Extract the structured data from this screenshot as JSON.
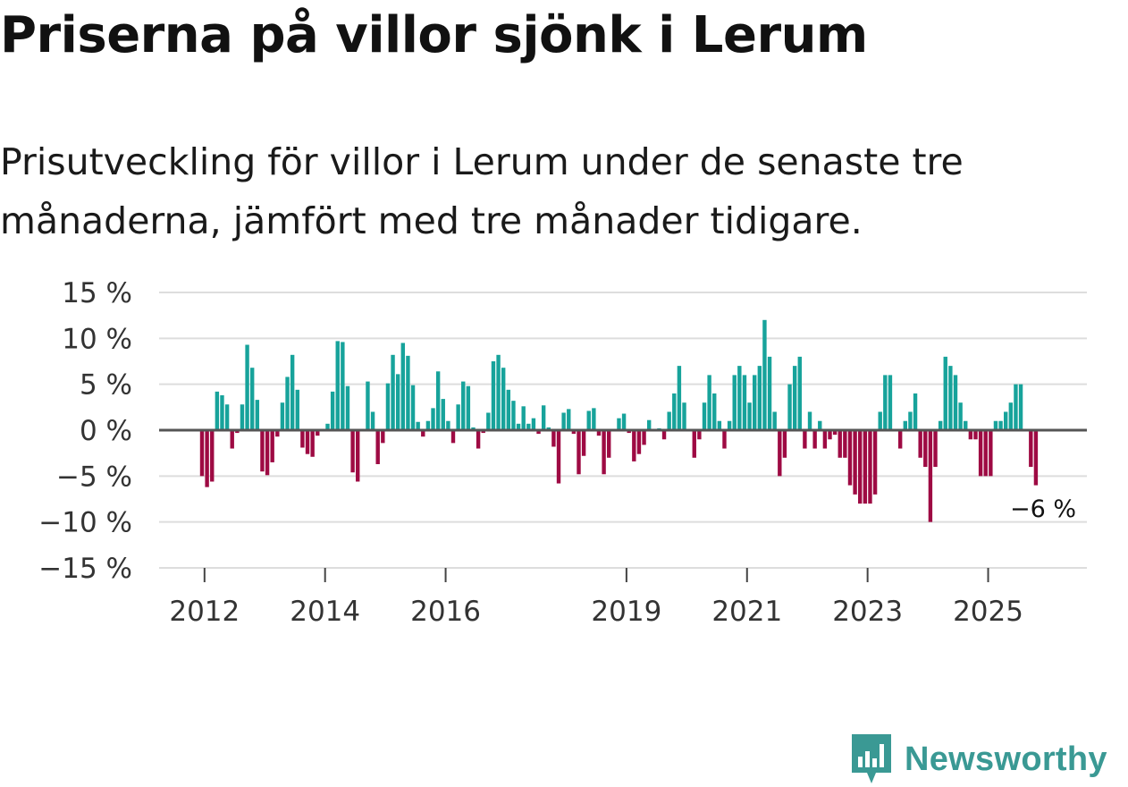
{
  "header": {
    "title": "Priserna på villor sjönk i Lerum",
    "subtitle_line1": "Prisutveckling för villor i Lerum under de senaste tre",
    "subtitle_line2": "månaderna, jämfört med tre månader tidigare."
  },
  "branding": {
    "name": "Newsworthy",
    "icon": "newsworthy-logo-icon"
  },
  "colors": {
    "positive": "#17a39b",
    "negative": "#9e0a43",
    "zero_line": "#555555",
    "grid": "#dddddd",
    "brand": "#3a9994"
  },
  "chart_data": {
    "type": "bar",
    "title": "Priserna på villor sjönk i Lerum",
    "ylabel": "%",
    "ylim": [
      -15,
      15
    ],
    "y_ticks": [
      15,
      10,
      5,
      0,
      -5,
      -10,
      -15
    ],
    "y_tick_labels": [
      "15 %",
      "10 %",
      "5 %",
      "0 %",
      "−5 %",
      "−10 %",
      "−15 %"
    ],
    "x_start": {
      "year": 2011,
      "month": 12
    },
    "x_ticks": [
      {
        "year": 2012,
        "label": "2012"
      },
      {
        "year": 2014,
        "label": "2014"
      },
      {
        "year": 2016,
        "label": "2016"
      },
      {
        "year": 2019,
        "label": "2019"
      },
      {
        "year": 2021,
        "label": "2021"
      },
      {
        "year": 2023,
        "label": "2023"
      },
      {
        "year": 2025,
        "label": "2025"
      }
    ],
    "values": [
      -5.0,
      -6.2,
      -5.6,
      4.2,
      3.8,
      2.8,
      -2.0,
      -0.3,
      2.8,
      9.3,
      6.8,
      3.3,
      -4.5,
      -4.9,
      -3.5,
      -0.7,
      3.0,
      5.8,
      8.2,
      4.4,
      -1.9,
      -2.6,
      -2.9,
      -0.6,
      0.0,
      0.7,
      4.2,
      9.7,
      9.6,
      4.8,
      -4.6,
      -5.6,
      0.0,
      5.3,
      2.0,
      -3.7,
      -1.4,
      5.1,
      8.2,
      6.1,
      9.5,
      8.1,
      4.9,
      0.9,
      -0.7,
      1.0,
      2.4,
      6.4,
      3.4,
      1.0,
      -1.4,
      2.8,
      5.3,
      4.8,
      0.3,
      -2.0,
      -0.3,
      1.9,
      7.5,
      8.2,
      6.8,
      4.4,
      3.2,
      0.7,
      2.6,
      0.7,
      1.3,
      -0.4,
      2.7,
      0.3,
      -1.8,
      -5.8,
      1.9,
      2.3,
      -0.4,
      -4.8,
      -2.8,
      2.1,
      2.4,
      -0.6,
      -4.8,
      -3.0,
      0.0,
      1.3,
      1.8,
      -0.3,
      -3.4,
      -2.6,
      -1.6,
      1.1,
      0.0,
      0.2,
      -1.0,
      2.0,
      4.0,
      7.0,
      3.0,
      0.0,
      -3.0,
      -1.0,
      3.0,
      6.0,
      4.0,
      1.0,
      -2.0,
      1.0,
      6.0,
      7.0,
      6.0,
      3.0,
      6.0,
      7.0,
      12.0,
      8.0,
      2.0,
      -5.0,
      -3.0,
      5.0,
      7.0,
      8.0,
      -2.0,
      2.0,
      -2.0,
      1.0,
      -2.0,
      -1.0,
      -0.5,
      -3.0,
      -3.0,
      -6.0,
      -7.0,
      -8.0,
      -8.0,
      -8.0,
      -7.0,
      2.0,
      6.0,
      6.0,
      0.0,
      -2.0,
      1.0,
      2.0,
      4.0,
      -3.0,
      -4.0,
      -10.0,
      -4.0,
      1.0,
      8.0,
      7.0,
      6.0,
      3.0,
      1.0,
      -1.0,
      -1.0,
      -5.0,
      -5.0,
      -5.0,
      1.0,
      1.0,
      2.0,
      3.0,
      5.0,
      5.0,
      0.0,
      -4.0,
      -6.0
    ],
    "last_value_label": "−6 %"
  }
}
